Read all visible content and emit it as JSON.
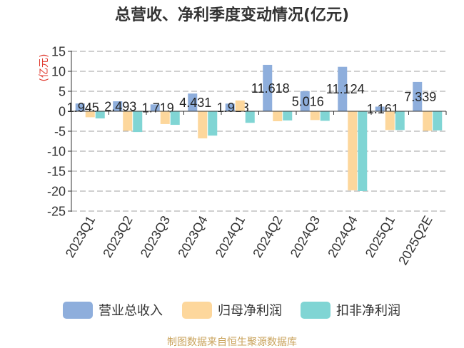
{
  "footer": "制图数据来自恒生聚源数据库",
  "colors": {
    "title": "#333333",
    "ylabel": "#e03a2f",
    "footer": "#c9a25a"
  },
  "chart_data": {
    "type": "bar",
    "title": "总营收、净利季度变动情况(亿元)",
    "xlabel": "",
    "ylabel": "(亿元)",
    "categories": [
      "2023Q1",
      "2023Q2",
      "2023Q3",
      "2023Q4",
      "2024Q1",
      "2024Q2",
      "2024Q3",
      "2024Q4",
      "2025Q1",
      "2025Q2E"
    ],
    "ylim": [
      -25,
      15
    ],
    "yticks": [
      15,
      10,
      5,
      0,
      -5,
      -10,
      -15,
      -20,
      -25
    ],
    "grid": true,
    "legend_position": "bottom",
    "series": [
      {
        "name": "营业总收入",
        "color": "#8eaedc",
        "data_labels": true,
        "values": [
          1.945,
          2.493,
          1.719,
          4.431,
          1.913,
          11.618,
          5.016,
          11.124,
          1.161,
          7.339
        ]
      },
      {
        "name": "归母净利润",
        "color": "#fdd79c",
        "values": [
          -1.5,
          -4.9,
          -3.2,
          -6.8,
          2.7,
          -2.5,
          -2.2,
          -19.8,
          -4.7,
          -4.9
        ]
      },
      {
        "name": "扣非净利润",
        "color": "#80d5d4",
        "values": [
          -1.8,
          -5.2,
          -3.4,
          -6.1,
          -2.9,
          -2.3,
          -2.4,
          -20.0,
          -4.7,
          -4.8
        ]
      }
    ]
  }
}
